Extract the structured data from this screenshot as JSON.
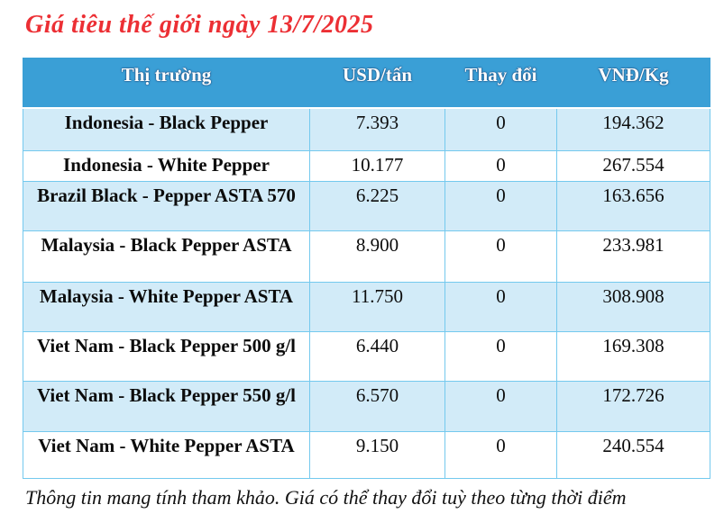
{
  "page": {
    "title": "Giá tiêu thế giới ngày 13/7/2025",
    "footer": "Thông tin mang tính tham khảo. Giá có thể thay đổi tuỳ theo từng thời điểm"
  },
  "colors": {
    "title_red": "#ec2f34",
    "header_bg": "#3a9fd6",
    "header_text": "#ffffff",
    "row_alt_bg": "#d2ebf8",
    "row_bg": "#ffffff",
    "cell_border": "#74c9ee",
    "change_value": "#3aa6e5",
    "body_text": "#0c0c0c"
  },
  "table": {
    "columns": [
      "Thị trường",
      "USD/tấn",
      "Thay đổi",
      "VNĐ/Kg"
    ],
    "rows": [
      {
        "market": "Indonesia - Black Pepper",
        "usd": "7.393",
        "change": "0",
        "vnd": "194.362"
      },
      {
        "market": "Indonesia - White Pepper",
        "usd": "10.177",
        "change": "0",
        "vnd": "267.554"
      },
      {
        "market": "Brazil Black - Pepper ASTA 570",
        "usd": "6.225",
        "change": "0",
        "vnd": "163.656"
      },
      {
        "market": "Malaysia - Black Pepper ASTA",
        "usd": "8.900",
        "change": "0",
        "vnd": "233.981"
      },
      {
        "market": "Malaysia - White Pepper ASTA",
        "usd": "11.750",
        "change": "0",
        "vnd": "308.908"
      },
      {
        "market": "Viet Nam - Black Pepper 500 g/l",
        "usd": "6.440",
        "change": "0",
        "vnd": "169.308"
      },
      {
        "market": "Viet Nam - Black Pepper 550 g/l",
        "usd": "6.570",
        "change": "0",
        "vnd": "172.726"
      },
      {
        "market": "Viet Nam - White Pepper ASTA",
        "usd": "9.150",
        "change": "0",
        "vnd": "240.554"
      }
    ]
  }
}
